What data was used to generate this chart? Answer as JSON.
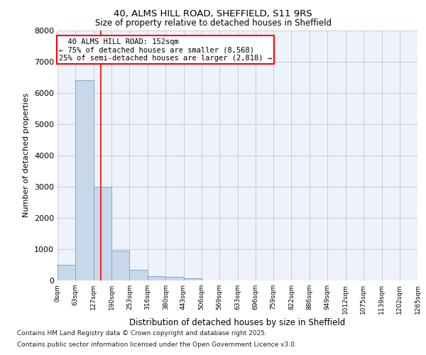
{
  "title_line1": "40, ALMS HILL ROAD, SHEFFIELD, S11 9RS",
  "title_line2": "Size of property relative to detached houses in Sheffield",
  "xlabel": "Distribution of detached houses by size in Sheffield",
  "ylabel": "Number of detached properties",
  "annotation_line1": "  40 ALMS HILL ROAD: 152sqm",
  "annotation_line2": "← 75% of detached houses are smaller (8,568)",
  "annotation_line3": "25% of semi-detached houses are larger (2,818) →",
  "property_size": 152,
  "bar_color": "#c8d8ea",
  "bar_edge_color": "#7aaac8",
  "redline_color": "red",
  "background_color": "#eef2fa",
  "grid_color": "#b0bed8",
  "footer_line1": "Contains HM Land Registry data © Crown copyright and database right 2025.",
  "footer_line2": "Contains public sector information licensed under the Open Government Licence v3.0.",
  "bin_edges": [
    0,
    63,
    127,
    190,
    253,
    316,
    380,
    443,
    506,
    569,
    633,
    696,
    759,
    822,
    886,
    949,
    1012,
    1075,
    1139,
    1202,
    1265
  ],
  "bar_heights": [
    500,
    6400,
    3000,
    950,
    350,
    130,
    110,
    60,
    0,
    0,
    0,
    0,
    0,
    0,
    0,
    0,
    0,
    0,
    0,
    0
  ],
  "ylim": [
    0,
    8000
  ],
  "yticks": [
    0,
    1000,
    2000,
    3000,
    4000,
    5000,
    6000,
    7000,
    8000
  ]
}
